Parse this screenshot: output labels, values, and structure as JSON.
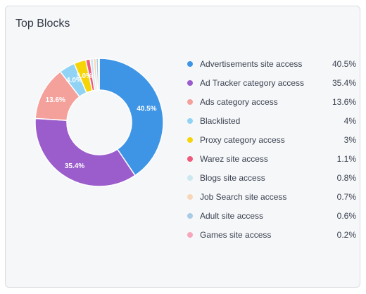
{
  "widget": {
    "title": "Top Blocks"
  },
  "chart_data": {
    "type": "pie",
    "title": "Top Blocks",
    "categories": [
      "Advertisements site access",
      "Ad Tracker category access",
      "Ads category access",
      "Blacklisted",
      "Proxy category access",
      "Warez site access",
      "Blogs site access",
      "Job Search site access",
      "Adult site access",
      "Games site access"
    ],
    "values": [
      40.5,
      35.4,
      13.6,
      4,
      3,
      1.1,
      0.8,
      0.7,
      0.6,
      0.2
    ],
    "value_labels": [
      "40.5%",
      "35.4%",
      "13.6%",
      "4%",
      "3%",
      "1.1%",
      "0.8%",
      "0.7%",
      "0.6%",
      "0.2%"
    ],
    "slice_labels": [
      "40.5%",
      "35.4%",
      "13.6%",
      "4.0%",
      "3.0%",
      "",
      "",
      "",
      "",
      ""
    ],
    "colors": [
      "#3e95e6",
      "#9b5ccc",
      "#f4a09b",
      "#90d3f5",
      "#f5d50a",
      "#ef5b7c",
      "#cbe7ef",
      "#f8d6b8",
      "#a8cbe6",
      "#f7a6bd"
    ],
    "donut": true,
    "legend_position": "right"
  }
}
